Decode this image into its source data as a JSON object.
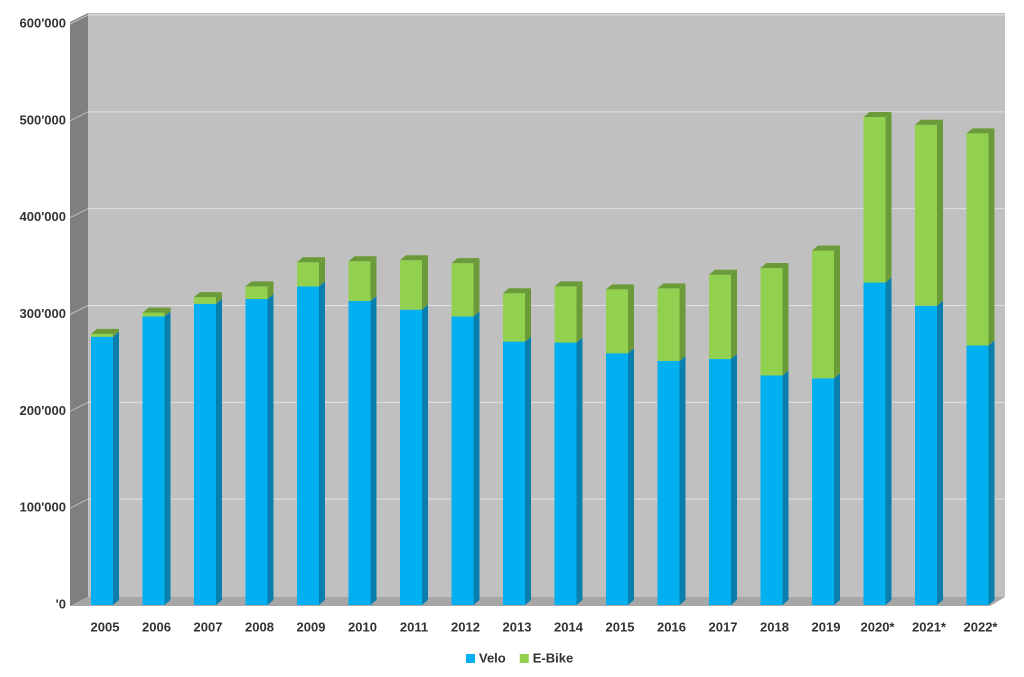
{
  "chart_data": {
    "type": "bar3d_stacked",
    "categories": [
      "2005",
      "2006",
      "2007",
      "2008",
      "2009",
      "2010",
      "2011",
      "2012",
      "2013",
      "2014",
      "2015",
      "2016",
      "2017",
      "2018",
      "2019",
      "2020*",
      "2021*",
      "2022*"
    ],
    "series": [
      {
        "name": "Velo",
        "color": "#00b0f0",
        "side_color": "#0a7fae",
        "values": [
          277000,
          298000,
          311000,
          316000,
          329000,
          314000,
          305000,
          298000,
          272000,
          271000,
          260000,
          252000,
          254000,
          237000,
          234000,
          333000,
          309000,
          268000
        ]
      },
      {
        "name": "E-Bike",
        "color": "#92d050",
        "side_color": "#6b9b38",
        "values": [
          3000,
          4000,
          7000,
          13000,
          25000,
          41000,
          51000,
          55000,
          50000,
          58000,
          66000,
          75000,
          87000,
          111000,
          132000,
          171000,
          187000,
          219000
        ]
      }
    ],
    "ylim": [
      0,
      600000
    ],
    "yticks": [
      {
        "value": 0,
        "label": "'0"
      },
      {
        "value": 100000,
        "label": "100'000"
      },
      {
        "value": 200000,
        "label": "200'000"
      },
      {
        "value": 300000,
        "label": "300'000"
      },
      {
        "value": 400000,
        "label": "400'000"
      },
      {
        "value": 500000,
        "label": "500'000"
      },
      {
        "value": 600000,
        "label": "600'000"
      }
    ],
    "grid": true,
    "stacked": true,
    "legend": "bottom"
  }
}
